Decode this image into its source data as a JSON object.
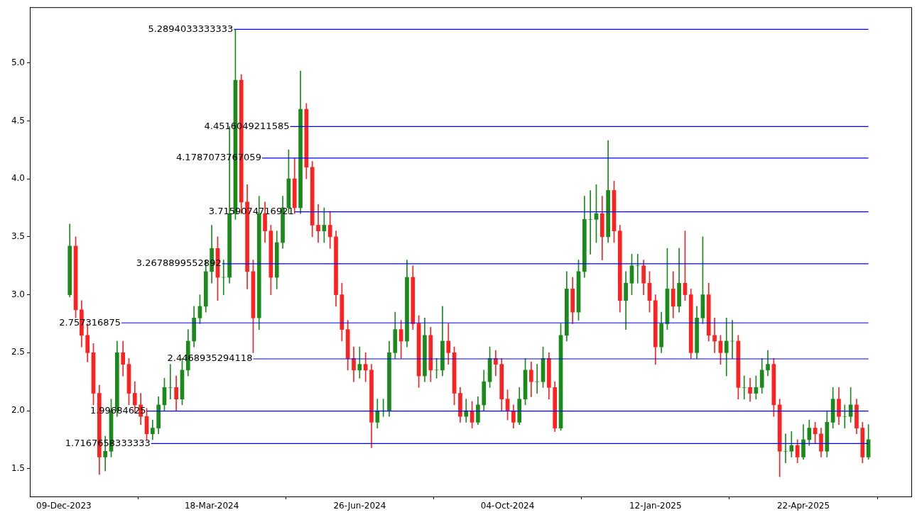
{
  "chart_data": {
    "type": "candlestick",
    "x": [
      "2023-12-13",
      "2023-12-17",
      "2023-12-21",
      "2023-12-25",
      "2023-12-29",
      "2024-01-02",
      "2024-01-06",
      "2024-01-10",
      "2024-01-14",
      "2024-01-18",
      "2024-01-22",
      "2024-01-26",
      "2024-01-30",
      "2024-02-03",
      "2024-02-07",
      "2024-02-11",
      "2024-02-15",
      "2024-02-19",
      "2024-02-23",
      "2024-02-27",
      "2024-03-02",
      "2024-03-06",
      "2024-03-10",
      "2024-03-14",
      "2024-03-18",
      "2024-03-22",
      "2024-03-26",
      "2024-03-30",
      "2024-04-03",
      "2024-04-07",
      "2024-04-11",
      "2024-04-15",
      "2024-04-19",
      "2024-04-23",
      "2024-04-27",
      "2024-05-01",
      "2024-05-05",
      "2024-05-09",
      "2024-05-13",
      "2024-05-17",
      "2024-05-21",
      "2024-05-25",
      "2024-05-29",
      "2024-06-02",
      "2024-06-06",
      "2024-06-10",
      "2024-06-14",
      "2024-06-18",
      "2024-06-22",
      "2024-06-26",
      "2024-06-30",
      "2024-07-04",
      "2024-07-08",
      "2024-07-12",
      "2024-07-16",
      "2024-07-20",
      "2024-07-24",
      "2024-07-28",
      "2024-08-01",
      "2024-08-05",
      "2024-08-09",
      "2024-08-13",
      "2024-08-17",
      "2024-08-21",
      "2024-08-25",
      "2024-08-29",
      "2024-09-02",
      "2024-09-06",
      "2024-09-10",
      "2024-09-14",
      "2024-09-18",
      "2024-09-22",
      "2024-09-26",
      "2024-09-30",
      "2024-10-04",
      "2024-10-08",
      "2024-10-12",
      "2024-10-16",
      "2024-10-20",
      "2024-10-24",
      "2024-10-28",
      "2024-11-01",
      "2024-11-05",
      "2024-11-09",
      "2024-11-13",
      "2024-11-17",
      "2024-11-21",
      "2024-11-25",
      "2024-11-29",
      "2024-12-03",
      "2024-12-07",
      "2024-12-11",
      "2024-12-15",
      "2024-12-19",
      "2024-12-23",
      "2024-12-27",
      "2024-12-31",
      "2025-01-04",
      "2025-01-08",
      "2025-01-12",
      "2025-01-16",
      "2025-01-20",
      "2025-01-24",
      "2025-01-28",
      "2025-02-01",
      "2025-02-05",
      "2025-02-09",
      "2025-02-13",
      "2025-02-17",
      "2025-02-21",
      "2025-02-25",
      "2025-03-01",
      "2025-03-05",
      "2025-03-09",
      "2025-03-13",
      "2025-03-17",
      "2025-03-21",
      "2025-03-25",
      "2025-03-29",
      "2025-04-02",
      "2025-04-06",
      "2025-04-10",
      "2025-04-14",
      "2025-04-18",
      "2025-04-22",
      "2025-04-26",
      "2025-04-30",
      "2025-05-04",
      "2025-05-08",
      "2025-05-12",
      "2025-05-16",
      "2025-05-20",
      "2025-05-24",
      "2025-05-28",
      "2025-06-01",
      "2025-06-05"
    ],
    "ohlc": [
      [
        3.0,
        3.61,
        2.98,
        3.42
      ],
      [
        3.42,
        3.5,
        2.8,
        2.87
      ],
      [
        2.87,
        2.95,
        2.55,
        2.65
      ],
      [
        2.65,
        2.75,
        2.42,
        2.5
      ],
      [
        2.5,
        2.58,
        2.05,
        2.15
      ],
      [
        2.15,
        2.22,
        1.45,
        1.6
      ],
      [
        1.6,
        1.78,
        1.48,
        1.65
      ],
      [
        1.65,
        2.1,
        1.6,
        2.0
      ],
      [
        2.0,
        2.6,
        1.95,
        2.5
      ],
      [
        2.5,
        2.6,
        2.3,
        2.4
      ],
      [
        2.4,
        2.45,
        2.05,
        2.15
      ],
      [
        2.15,
        2.25,
        1.98,
        2.05
      ],
      [
        2.05,
        2.15,
        1.88,
        1.95
      ],
      [
        1.95,
        2.02,
        1.75,
        1.8
      ],
      [
        1.8,
        1.92,
        1.75,
        1.85
      ],
      [
        1.85,
        2.12,
        1.8,
        2.05
      ],
      [
        2.05,
        2.28,
        2.0,
        2.2
      ],
      [
        2.2,
        2.4,
        2.1,
        2.2
      ],
      [
        2.2,
        2.3,
        2.0,
        2.1
      ],
      [
        2.1,
        2.45,
        2.05,
        2.35
      ],
      [
        2.35,
        2.7,
        2.3,
        2.6
      ],
      [
        2.6,
        2.9,
        2.55,
        2.8
      ],
      [
        2.8,
        3.0,
        2.75,
        2.9
      ],
      [
        2.9,
        3.3,
        2.85,
        3.2
      ],
      [
        3.2,
        3.6,
        3.1,
        3.4
      ],
      [
        3.4,
        3.5,
        2.95,
        3.15
      ],
      [
        3.15,
        3.3,
        3.0,
        3.15
      ],
      [
        3.15,
        4.45,
        3.1,
        3.7
      ],
      [
        3.7,
        5.29,
        3.65,
        4.85
      ],
      [
        4.85,
        4.9,
        3.7,
        3.8
      ],
      [
        3.8,
        3.95,
        3.05,
        3.2
      ],
      [
        3.2,
        3.3,
        2.5,
        2.8
      ],
      [
        2.8,
        3.85,
        2.7,
        3.7
      ],
      [
        3.7,
        3.8,
        3.45,
        3.55
      ],
      [
        3.55,
        3.6,
        3.0,
        3.15
      ],
      [
        3.15,
        3.55,
        3.05,
        3.45
      ],
      [
        3.45,
        3.85,
        3.4,
        3.75
      ],
      [
        3.75,
        4.25,
        3.7,
        4.0
      ],
      [
        4.0,
        4.18,
        3.7,
        3.75
      ],
      [
        3.75,
        4.93,
        3.7,
        4.6
      ],
      [
        4.6,
        4.65,
        4.0,
        4.1
      ],
      [
        4.1,
        4.15,
        3.5,
        3.6
      ],
      [
        3.6,
        3.78,
        3.45,
        3.55
      ],
      [
        3.55,
        3.75,
        3.45,
        3.6
      ],
      [
        3.6,
        3.72,
        3.4,
        3.5
      ],
      [
        3.5,
        3.55,
        2.9,
        3.0
      ],
      [
        3.0,
        3.1,
        2.6,
        2.7
      ],
      [
        2.7,
        2.78,
        2.35,
        2.45
      ],
      [
        2.45,
        2.55,
        2.25,
        2.35
      ],
      [
        2.35,
        2.55,
        2.28,
        2.4
      ],
      [
        2.4,
        2.5,
        2.25,
        2.35
      ],
      [
        2.35,
        2.4,
        1.68,
        1.9
      ],
      [
        1.9,
        2.1,
        1.85,
        2.0
      ],
      [
        2.0,
        2.1,
        1.95,
        2.0
      ],
      [
        2.0,
        2.6,
        1.95,
        2.5
      ],
      [
        2.5,
        2.85,
        2.45,
        2.7
      ],
      [
        2.7,
        2.78,
        2.45,
        2.6
      ],
      [
        2.6,
        3.3,
        2.55,
        3.15
      ],
      [
        3.15,
        3.25,
        2.7,
        2.75
      ],
      [
        2.75,
        2.82,
        2.2,
        2.3
      ],
      [
        2.3,
        2.8,
        2.25,
        2.65
      ],
      [
        2.65,
        2.72,
        2.25,
        2.35
      ],
      [
        2.35,
        2.45,
        2.28,
        2.35
      ],
      [
        2.35,
        2.9,
        2.3,
        2.6
      ],
      [
        2.6,
        2.75,
        2.4,
        2.5
      ],
      [
        2.5,
        2.55,
        2.05,
        2.15
      ],
      [
        2.15,
        2.2,
        1.9,
        1.95
      ],
      [
        1.95,
        2.1,
        1.9,
        2.0
      ],
      [
        2.0,
        2.08,
        1.85,
        1.9
      ],
      [
        1.9,
        2.12,
        1.88,
        2.05
      ],
      [
        2.05,
        2.35,
        2.0,
        2.25
      ],
      [
        2.25,
        2.55,
        2.2,
        2.45
      ],
      [
        2.45,
        2.52,
        2.3,
        2.4
      ],
      [
        2.4,
        2.45,
        2.0,
        2.1
      ],
      [
        2.1,
        2.18,
        1.92,
        2.0
      ],
      [
        2.0,
        2.05,
        1.85,
        1.9
      ],
      [
        1.9,
        2.2,
        1.88,
        2.1
      ],
      [
        2.1,
        2.45,
        2.05,
        2.35
      ],
      [
        2.35,
        2.42,
        2.12,
        2.25
      ],
      [
        2.25,
        2.4,
        2.15,
        2.25
      ],
      [
        2.25,
        2.55,
        2.2,
        2.45
      ],
      [
        2.45,
        2.5,
        2.1,
        2.2
      ],
      [
        2.2,
        2.25,
        1.82,
        1.85
      ],
      [
        1.85,
        2.75,
        1.83,
        2.65
      ],
      [
        2.65,
        3.2,
        2.6,
        3.05
      ],
      [
        3.05,
        3.15,
        2.75,
        2.85
      ],
      [
        2.85,
        3.3,
        2.78,
        3.2
      ],
      [
        3.2,
        3.85,
        3.15,
        3.65
      ],
      [
        3.65,
        3.9,
        3.35,
        3.65
      ],
      [
        3.65,
        3.95,
        3.45,
        3.7
      ],
      [
        3.7,
        3.85,
        3.3,
        3.5
      ],
      [
        3.5,
        4.33,
        3.45,
        3.9
      ],
      [
        3.9,
        3.98,
        3.45,
        3.55
      ],
      [
        3.55,
        3.6,
        2.85,
        2.95
      ],
      [
        2.95,
        3.2,
        2.7,
        3.1
      ],
      [
        3.1,
        3.35,
        3.0,
        3.25
      ],
      [
        3.25,
        3.35,
        3.1,
        3.25
      ],
      [
        3.25,
        3.3,
        3.0,
        3.1
      ],
      [
        3.1,
        3.2,
        2.85,
        2.95
      ],
      [
        2.95,
        3.0,
        2.4,
        2.55
      ],
      [
        2.55,
        2.85,
        2.5,
        2.75
      ],
      [
        2.75,
        3.4,
        2.7,
        3.05
      ],
      [
        3.05,
        3.2,
        2.8,
        2.9
      ],
      [
        2.9,
        3.4,
        2.85,
        3.1
      ],
      [
        3.1,
        3.55,
        2.95,
        3.0
      ],
      [
        3.0,
        3.05,
        2.45,
        2.5
      ],
      [
        2.5,
        2.9,
        2.45,
        2.8
      ],
      [
        2.8,
        3.5,
        2.75,
        3.0
      ],
      [
        3.0,
        3.1,
        2.6,
        2.65
      ],
      [
        2.65,
        2.8,
        2.5,
        2.6
      ],
      [
        2.6,
        2.65,
        2.4,
        2.5
      ],
      [
        2.5,
        2.8,
        2.3,
        2.6
      ],
      [
        2.6,
        2.78,
        2.45,
        2.6
      ],
      [
        2.6,
        2.65,
        2.1,
        2.2
      ],
      [
        2.2,
        2.3,
        2.1,
        2.2
      ],
      [
        2.2,
        2.28,
        2.08,
        2.15
      ],
      [
        2.15,
        2.3,
        2.1,
        2.2
      ],
      [
        2.2,
        2.45,
        2.15,
        2.35
      ],
      [
        2.35,
        2.52,
        2.3,
        2.4
      ],
      [
        2.4,
        2.45,
        1.95,
        2.05
      ],
      [
        2.05,
        2.1,
        1.43,
        1.65
      ],
      [
        1.65,
        1.8,
        1.55,
        1.65
      ],
      [
        1.65,
        1.82,
        1.6,
        1.7
      ],
      [
        1.7,
        1.75,
        1.55,
        1.6
      ],
      [
        1.6,
        1.88,
        1.58,
        1.75
      ],
      [
        1.75,
        1.92,
        1.7,
        1.85
      ],
      [
        1.85,
        1.9,
        1.72,
        1.8
      ],
      [
        1.8,
        1.85,
        1.6,
        1.65
      ],
      [
        1.65,
        2.0,
        1.6,
        1.9
      ],
      [
        1.9,
        2.2,
        1.85,
        2.1
      ],
      [
        2.1,
        2.2,
        1.88,
        1.95
      ],
      [
        1.95,
        2.05,
        1.85,
        1.95
      ],
      [
        1.95,
        2.2,
        1.9,
        2.05
      ],
      [
        2.05,
        2.1,
        1.8,
        1.85
      ],
      [
        1.85,
        1.9,
        1.55,
        1.6
      ],
      [
        1.6,
        1.88,
        1.58,
        1.75
      ]
    ],
    "series": [
      {
        "type": "line",
        "name": "5.2894033333333",
        "color": "#0000ff",
        "x": [
          "2024-04-02",
          "2025-06-05"
        ],
        "values": [
          5.2894033333333,
          5.2894033333333
        ]
      },
      {
        "type": "line",
        "name": "4.4516049211585",
        "color": "#0000ff",
        "x": [
          "2024-05-10",
          "2025-06-05"
        ],
        "values": [
          4.4516049211585,
          4.4516049211585
        ]
      },
      {
        "type": "line",
        "name": "4.1787073767059",
        "color": "#0000ff",
        "x": [
          "2024-04-21",
          "2025-06-05"
        ],
        "values": [
          4.1787073767059,
          4.1787073767059
        ]
      },
      {
        "type": "line",
        "name": "3.7159074716921",
        "color": "#0000ff",
        "x": [
          "2024-05-13",
          "2025-06-05"
        ],
        "values": [
          3.7159074716921,
          3.7159074716921
        ]
      },
      {
        "type": "line",
        "name": "3.2678899552892",
        "color": "#0000ff",
        "x": [
          "2024-03-25",
          "2025-06-05"
        ],
        "values": [
          3.2678899552892,
          3.2678899552892
        ]
      },
      {
        "type": "line",
        "name": "2.757316875",
        "color": "#0000ff",
        "x": [
          "2024-01-17",
          "2025-06-05"
        ],
        "values": [
          2.757316875,
          2.757316875
        ]
      },
      {
        "type": "line",
        "name": "2.4468935294118",
        "color": "#0000ff",
        "x": [
          "2024-04-15",
          "2025-06-05"
        ],
        "values": [
          2.4468935294118,
          2.4468935294118
        ]
      },
      {
        "type": "line",
        "name": "1.99684625",
        "color": "#0000ff",
        "x": [
          "2024-02-03",
          "2025-06-05"
        ],
        "values": [
          1.99684625,
          1.99684625
        ]
      },
      {
        "type": "line",
        "name": "1.7167658333333",
        "color": "#0000ff",
        "x": [
          "2024-02-06",
          "2025-06-05"
        ],
        "values": [
          1.7167658333333,
          1.7167658333333
        ]
      }
    ],
    "xlim": [
      "2023-11-16",
      "2025-07-04"
    ],
    "xticks": [
      {
        "value": "2023-12-09",
        "label": "09-Dec-2023"
      },
      {
        "value": "2024-03-18",
        "label": "18-Mar-2024"
      },
      {
        "value": "2024-06-26",
        "label": "26-Jun-2024"
      },
      {
        "value": "2024-10-04",
        "label": "04-Oct-2024"
      },
      {
        "value": "2025-01-12",
        "label": "12-Jan-2025"
      },
      {
        "value": "2025-04-22",
        "label": "22-Apr-2025"
      }
    ],
    "ylim": [
      1.26,
      5.48
    ],
    "yticks": [
      1.5,
      {
        "value": 2,
        "label": "2.0"
      },
      2.5,
      {
        "value": 3,
        "label": "3.0"
      },
      3.5,
      {
        "value": 4,
        "label": "4.0"
      },
      4.5,
      {
        "value": 5,
        "label": "5.0"
      }
    ],
    "grid": false,
    "legend": false
  }
}
